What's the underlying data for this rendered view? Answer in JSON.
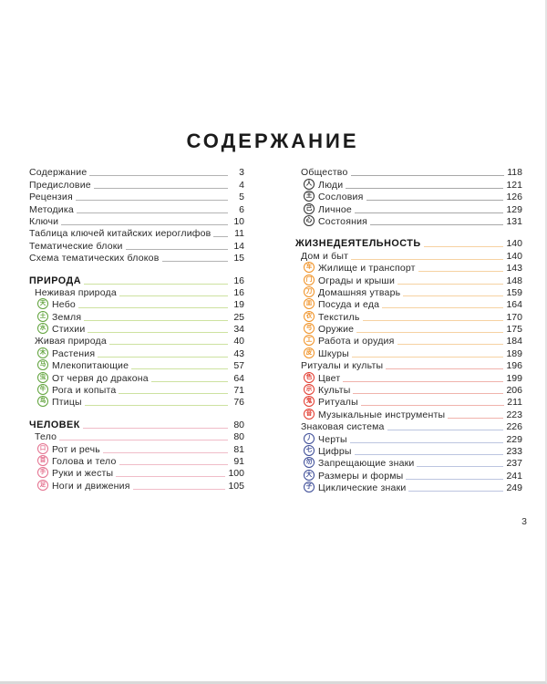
{
  "page": {
    "title": "СОДЕРЖАНИЕ",
    "folio": "3"
  },
  "colors": {
    "front_matter": "#2b2b2b",
    "nature_green": "#61a33c",
    "human_pink": "#e4708e",
    "society_dark": "#2f2f2f",
    "life_orange": "#f09123",
    "ritual_red": "#e23a2e",
    "sign_navy": "#3a4a96"
  },
  "toc": {
    "left": [
      {
        "name": "front-matter",
        "color": "#2b2b2b",
        "leader_color": "#b3b3b3",
        "gap_before": false,
        "items": [
          {
            "style": "plain",
            "label": "Содержание",
            "page": "3"
          },
          {
            "style": "plain",
            "label": "Предисловие",
            "page": "4"
          },
          {
            "style": "plain",
            "label": "Рецензия",
            "page": "5"
          },
          {
            "style": "plain",
            "label": "Методика",
            "page": "6"
          },
          {
            "style": "plain",
            "label": "Ключи",
            "page": "10"
          },
          {
            "style": "plain",
            "label": "Таблица ключей китайских иероглифов",
            "page": "11"
          },
          {
            "style": "plain",
            "label": "Тематические блоки",
            "page": "14"
          },
          {
            "style": "plain",
            "label": "Схема тематических блоков",
            "page": "15"
          }
        ]
      },
      {
        "name": "priroda",
        "color": "#61a33c",
        "leader_color": "#cde2a0",
        "gap_before": true,
        "items": [
          {
            "style": "section",
            "label": "ПРИРОДА",
            "page": "16"
          },
          {
            "style": "sub",
            "label": "Неживая природа",
            "page": "16"
          },
          {
            "style": "entry",
            "glyph": "天",
            "label": "Небо",
            "page": "19"
          },
          {
            "style": "entry",
            "glyph": "土",
            "label": "Земля",
            "page": "25"
          },
          {
            "style": "entry",
            "glyph": "水",
            "label": "Стихии",
            "page": "34"
          },
          {
            "style": "sub",
            "label": "Живая природа",
            "page": "40"
          },
          {
            "style": "entry",
            "glyph": "木",
            "label": "Растения",
            "page": "43"
          },
          {
            "style": "entry",
            "glyph": "马",
            "label": "Млекопитающие",
            "page": "57"
          },
          {
            "style": "entry",
            "glyph": "虫",
            "label": "От червя до дракона",
            "page": "64"
          },
          {
            "style": "entry",
            "glyph": "牛",
            "label": "Рога и копыта",
            "page": "71"
          },
          {
            "style": "entry",
            "glyph": "鸟",
            "label": "Птицы",
            "page": "76"
          }
        ]
      },
      {
        "name": "chelovek",
        "color": "#e4708e",
        "leader_color": "#f0bcc8",
        "gap_before": true,
        "items": [
          {
            "style": "section",
            "label": "ЧЕЛОВЕК",
            "page": "80"
          },
          {
            "style": "sub",
            "label": "Тело",
            "page": "80"
          },
          {
            "style": "entry",
            "glyph": "口",
            "label": "Рот и речь",
            "page": "81"
          },
          {
            "style": "entry",
            "glyph": "首",
            "label": "Голова и тело",
            "page": "91"
          },
          {
            "style": "entry",
            "glyph": "手",
            "label": "Руки и жесты",
            "page": "100"
          },
          {
            "style": "entry",
            "glyph": "足",
            "label": "Ноги и движения",
            "page": "105"
          }
        ]
      }
    ],
    "right": [
      {
        "name": "obschestvo",
        "color": "#2f2f2f",
        "leader_color": "#a8a8a8",
        "gap_before": false,
        "items": [
          {
            "style": "sub",
            "label": "Общество",
            "page": "118"
          },
          {
            "style": "entry",
            "glyph": "人",
            "label": "Люди",
            "page": "121"
          },
          {
            "style": "entry",
            "glyph": "王",
            "label": "Сословия",
            "page": "126"
          },
          {
            "style": "entry",
            "glyph": "己",
            "label": "Личное",
            "page": "129"
          },
          {
            "style": "entry",
            "glyph": "心",
            "label": "Состояния",
            "page": "131"
          }
        ]
      },
      {
        "name": "zhiznedeyatelnost",
        "color": "#f09123",
        "leader_color": "#f6d2a2",
        "gap_before": true,
        "items": [
          {
            "style": "section",
            "label": "ЖИЗНЕДЕЯТЕЛЬНОСТЬ",
            "page": "140"
          },
          {
            "style": "sub",
            "label": "Дом и быт",
            "page": "140"
          },
          {
            "style": "entry",
            "glyph": "车",
            "label": "Жилище и транспорт",
            "page": "143"
          },
          {
            "style": "entry",
            "glyph": "门",
            "label": "Ограды и крыши",
            "page": "148"
          },
          {
            "style": "entry",
            "glyph": "刀",
            "label": "Домашняя утварь",
            "page": "159"
          },
          {
            "style": "entry",
            "glyph": "皿",
            "label": "Посуда и еда",
            "page": "164"
          },
          {
            "style": "entry",
            "glyph": "衣",
            "label": "Текстиль",
            "page": "170"
          },
          {
            "style": "entry",
            "glyph": "弓",
            "label": "Оружие",
            "page": "175"
          },
          {
            "style": "entry",
            "glyph": "工",
            "label": "Работа и орудия",
            "page": "184"
          },
          {
            "style": "entry",
            "glyph": "皮",
            "label": "Шкуры",
            "page": "189"
          }
        ]
      },
      {
        "name": "ritualy",
        "color": "#e23a2e",
        "leader_color": "#f0b3ac",
        "gap_before": false,
        "items": [
          {
            "style": "sub",
            "label": "Ритуалы и культы",
            "page": "196"
          },
          {
            "style": "entry",
            "glyph": "色",
            "label": "Цвет",
            "page": "199"
          },
          {
            "style": "entry",
            "glyph": "示",
            "label": "Культы",
            "page": "206"
          },
          {
            "style": "entry",
            "glyph": "鬼",
            "label": "Ритуалы",
            "page": "211"
          },
          {
            "style": "entry",
            "glyph": "音",
            "label": "Музыкальные инструменты",
            "page": "223"
          }
        ]
      },
      {
        "name": "znakovaya-sistema",
        "color": "#3a4a96",
        "leader_color": "#bcc5e0",
        "gap_before": false,
        "items": [
          {
            "style": "sub",
            "label": "Знаковая система",
            "page": "226"
          },
          {
            "style": "entry",
            "glyph": "丿",
            "label": "Черты",
            "page": "229"
          },
          {
            "style": "entry",
            "glyph": "七",
            "label": "Цифры",
            "page": "233"
          },
          {
            "style": "entry",
            "glyph": "勿",
            "label": "Запрещающие знаки",
            "page": "237"
          },
          {
            "style": "entry",
            "glyph": "大",
            "label": "Размеры и формы",
            "page": "241"
          },
          {
            "style": "entry",
            "glyph": "子",
            "label": "Циклические знаки",
            "page": "249"
          }
        ]
      }
    ]
  }
}
